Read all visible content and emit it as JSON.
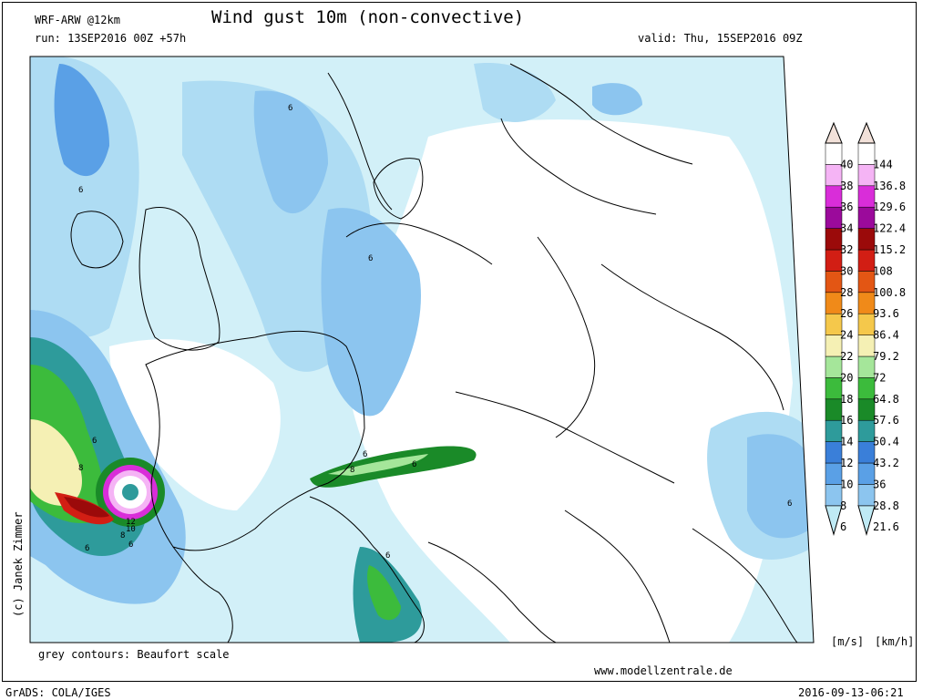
{
  "header": {
    "model": "WRF-ARW @12km",
    "title": "Wind gust 10m (non-convective)",
    "run": "run: 13SEP2016 00Z +57h",
    "valid": "valid: Thu, 15SEP2016 09Z"
  },
  "footer": {
    "contours_note": "grey contours: Beaufort scale",
    "website": "www.modellzentrale.de",
    "grads": "GrADS: COLA/IGES",
    "timestamp": "2016-09-13-06:21",
    "copyright": "(c) Janek Zimmer"
  },
  "legend": {
    "unit_ms": "[m/s]",
    "unit_kmh": "[km/h]",
    "ms_labels": [
      "6",
      "8",
      "10",
      "12",
      "14",
      "16",
      "18",
      "20",
      "22",
      "24",
      "26",
      "28",
      "30",
      "32",
      "34",
      "36",
      "38",
      "40"
    ],
    "kmh_labels": [
      "21.6",
      "28.8",
      "36",
      "43.2",
      "50.4",
      "57.6",
      "64.8",
      "72",
      "79.2",
      "86.4",
      "93.6",
      "100.8",
      "108",
      "115.2",
      "122.4",
      "129.6",
      "136.8",
      "144"
    ],
    "colors": [
      "#bfeaf5",
      "#8cc5ef",
      "#5aa0e6",
      "#3a7fd9",
      "#2e9b9b",
      "#1a8a28",
      "#3cbb3c",
      "#a5e69a",
      "#f5f0b4",
      "#f5c84b",
      "#f08a19",
      "#e35614",
      "#d21e14",
      "#9b0a0a",
      "#9b0a9b",
      "#d92dd9",
      "#f5b4f5",
      "#ffffff",
      "#f2e1d9"
    ]
  },
  "map_labels": {
    "six": "6",
    "eight": "8",
    "ten": "10",
    "twelve": "12"
  }
}
